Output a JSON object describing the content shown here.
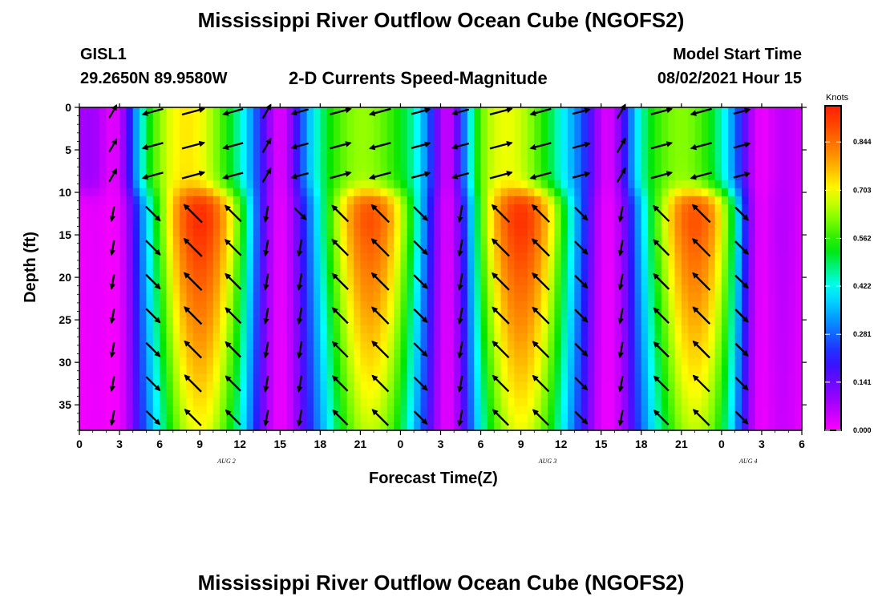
{
  "header": {
    "title": "Mississippi River Outflow Ocean Cube (NGOFS2)",
    "station": "GISL1",
    "coords": "29.2650N  89.9580W",
    "subtitle": "2-D Currents Speed-Magnitude",
    "model_start_label": "Model Start Time",
    "model_start_value": "08/02/2021 Hour 15"
  },
  "footer": {
    "title": "Mississippi River Outflow Ocean Cube (NGOFS2)"
  },
  "chart_data": {
    "type": "heatmap",
    "xlabel": "Forecast Time(Z)",
    "ylabel": "Depth (ft)",
    "x_range_hours": [
      0,
      54
    ],
    "x_tick_labels": [
      "0",
      "3",
      "6",
      "9",
      "12",
      "15",
      "18",
      "21",
      "0",
      "3",
      "6",
      "9",
      "12",
      "15",
      "18",
      "21",
      "0",
      "3",
      "6"
    ],
    "x_date_labels": [
      {
        "hour": 11,
        "label": "AUG  2"
      },
      {
        "hour": 35,
        "label": "AUG  3"
      },
      {
        "hour": 50,
        "label": "AUG  4"
      }
    ],
    "y_ticks": [
      0,
      5,
      10,
      15,
      20,
      25,
      30,
      35
    ],
    "y_range": [
      0,
      38
    ],
    "colorbar": {
      "unit": "Knots",
      "min": 0,
      "max": 0.95,
      "tick_labels": [
        "0.000",
        "0.141",
        "0.281",
        "0.422",
        "0.562",
        "0.703",
        "0.844"
      ]
    },
    "speed_model": {
      "deep_peaks": [
        {
          "center_hour": 9.0,
          "max_knots": 0.93
        },
        {
          "center_hour": 21.7,
          "max_knots": 0.88
        },
        {
          "center_hour": 33.0,
          "max_knots": 0.92
        },
        {
          "center_hour": 46.0,
          "max_knots": 0.88
        }
      ],
      "shallow_peaks": [
        {
          "center_hour": 8.0,
          "max_knots": 0.72
        },
        {
          "center_hour": 21.0,
          "max_knots": 0.62
        },
        {
          "center_hour": 32.0,
          "max_knots": 0.68
        },
        {
          "center_hour": 45.0,
          "max_knots": 0.62
        }
      ],
      "slack_hours": [
        2.5,
        15.0,
        27.5,
        39.5,
        51.0
      ]
    },
    "vector_columns_hours": [
      2.5,
      5.5,
      8.5,
      11.5,
      14.0,
      16.5,
      19.5,
      22.5,
      25.5,
      28.5,
      31.5,
      34.5,
      37.5,
      40.5,
      43.5,
      46.5,
      49.5
    ],
    "vector_depths_ft": [
      0.5,
      4.5,
      8.0,
      12.5,
      16.5,
      20.5,
      24.5,
      28.5,
      32.5,
      36.5
    ]
  }
}
